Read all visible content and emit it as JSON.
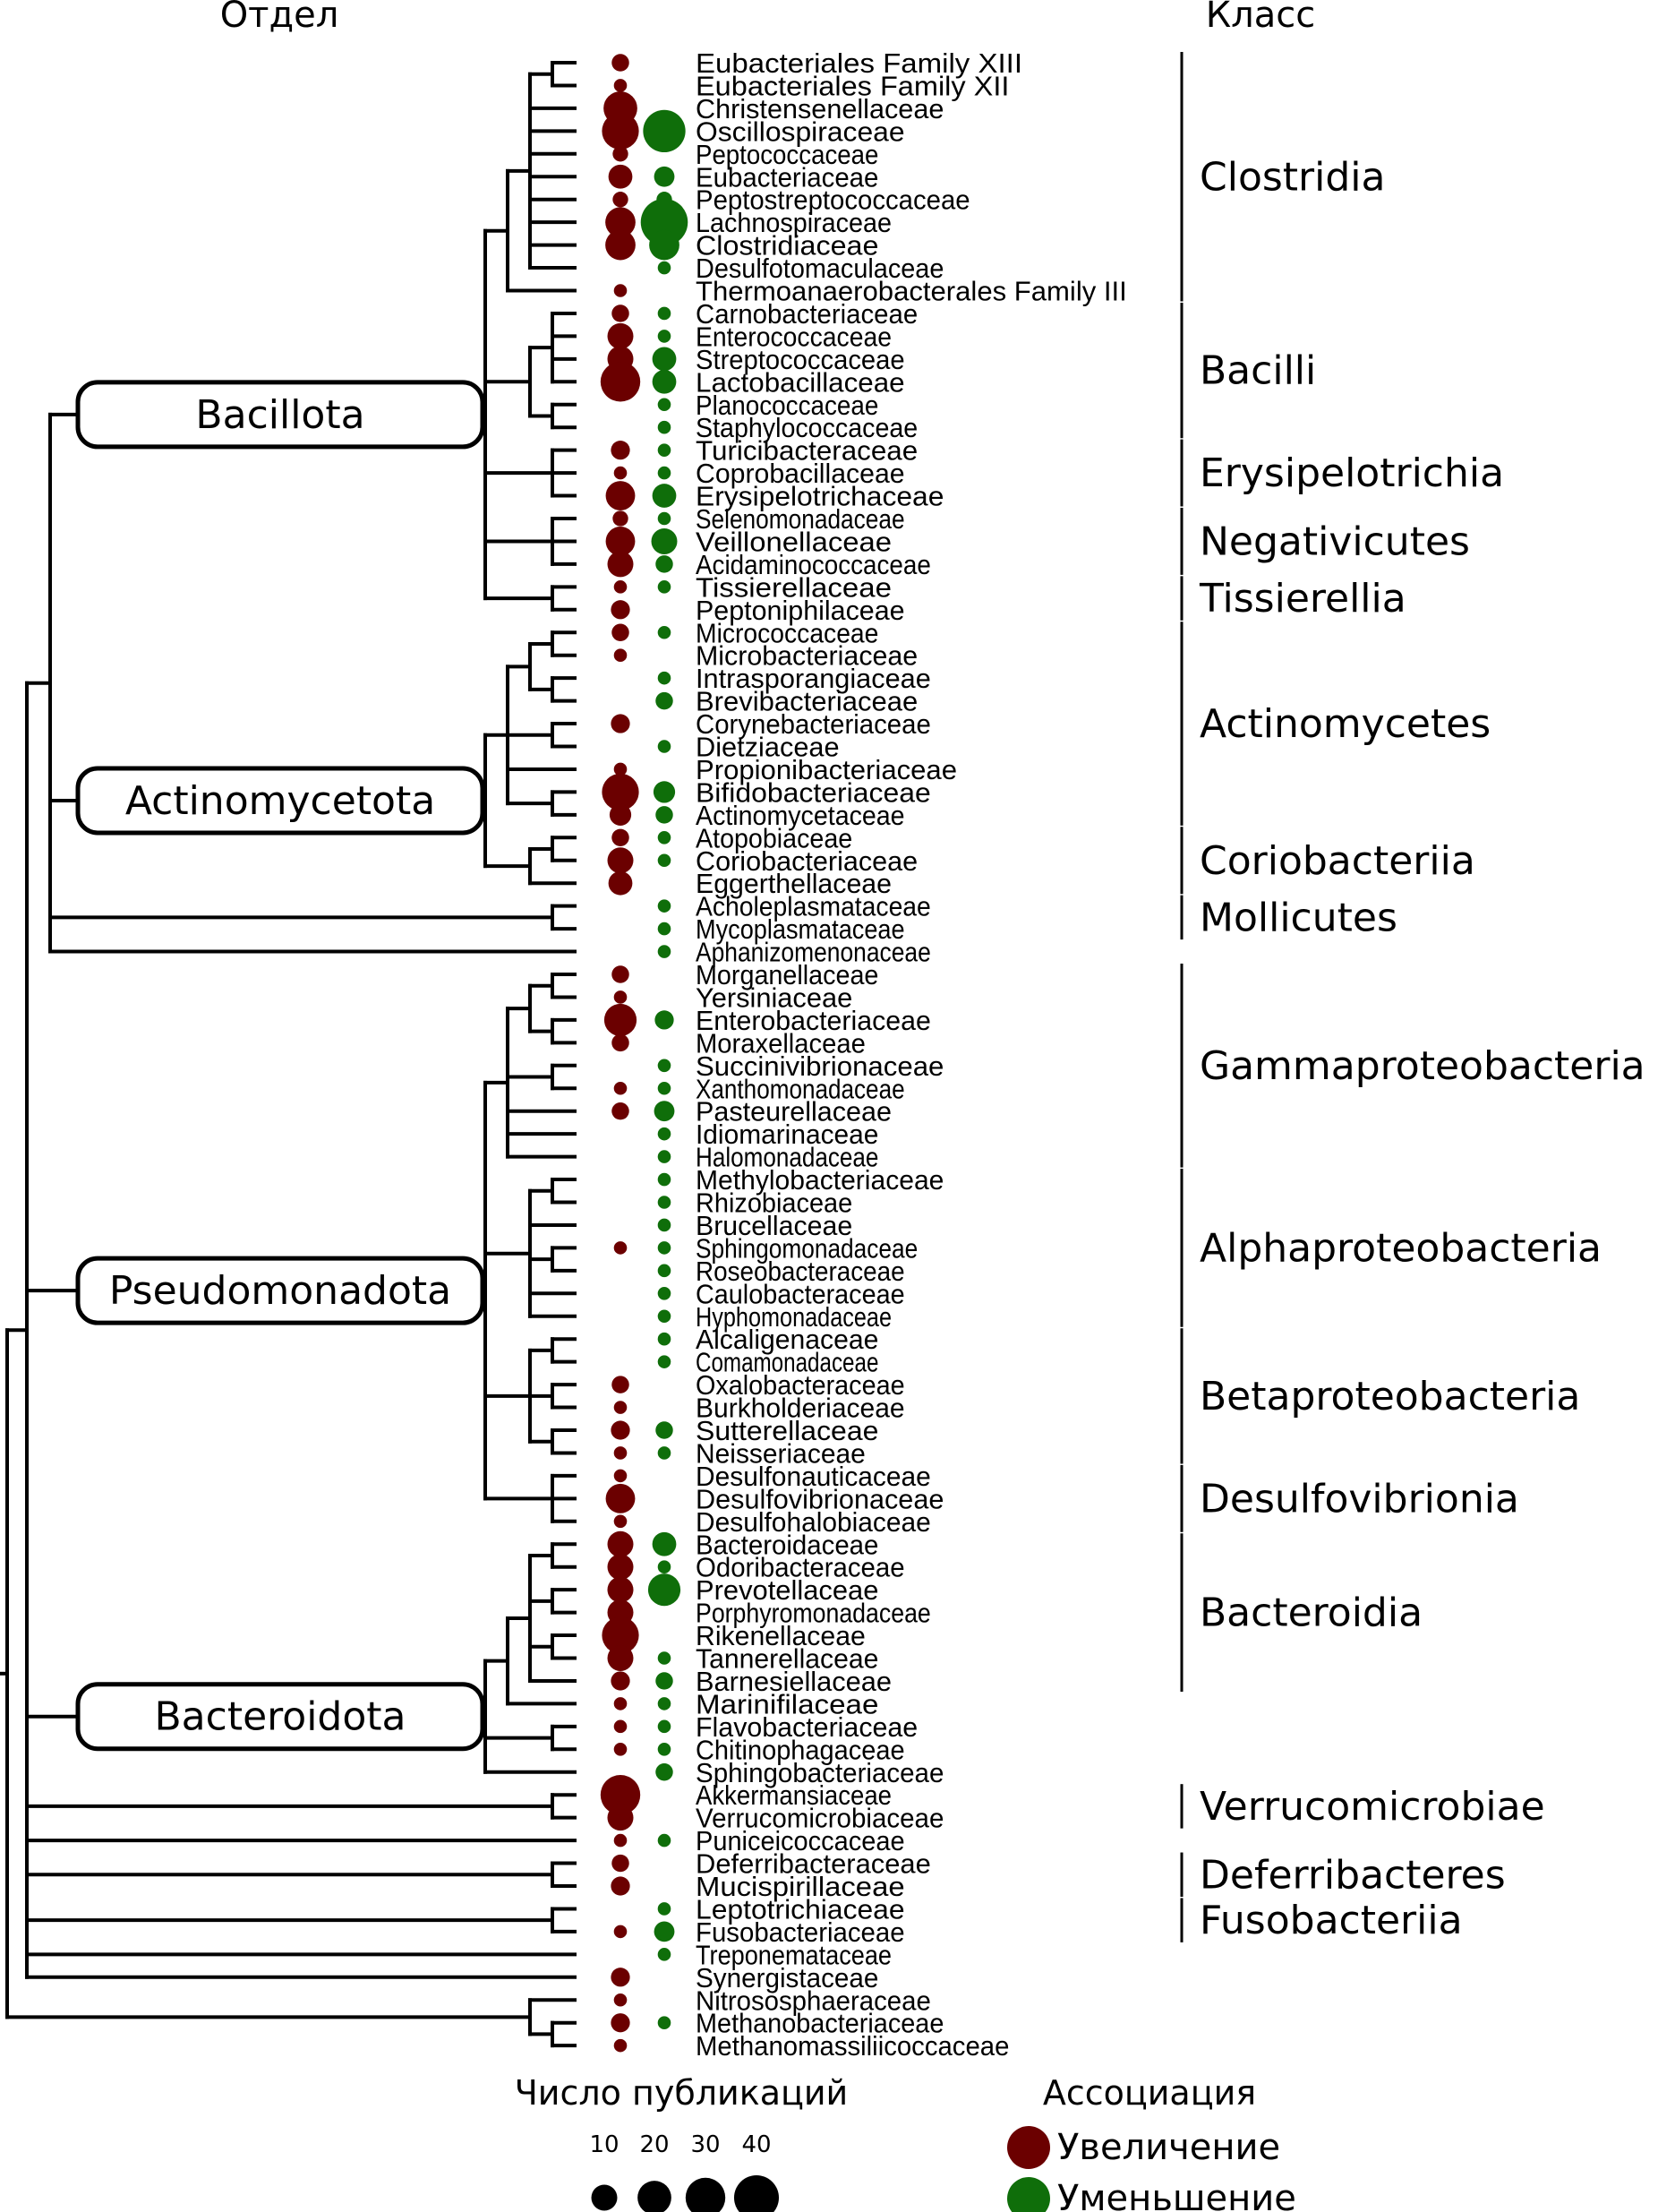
{
  "headers": {
    "phylum": "Отдел",
    "class": "Класс"
  },
  "colors": {
    "increase": "#6b0000",
    "decrease": "#0f6e0a",
    "lines": "#000000"
  },
  "families": [
    {
      "name": "Eubacteriales Family XIII",
      "increase": 3,
      "decrease": 0
    },
    {
      "name": "Eubacteriales Family XII",
      "increase": 1,
      "decrease": 0
    },
    {
      "name": "Christensenellaceae",
      "increase": 20,
      "decrease": 0
    },
    {
      "name": "Oscillospiraceae",
      "increase": 25,
      "decrease": 35
    },
    {
      "name": "Peptococcaceae",
      "increase": 2,
      "decrease": 0
    },
    {
      "name": "Eubacteriaceae",
      "increase": 8,
      "decrease": 5
    },
    {
      "name": "Peptostreptococcaceae",
      "increase": 2,
      "decrease": 2
    },
    {
      "name": "Lachnospiraceae",
      "increase": 15,
      "decrease": 45
    },
    {
      "name": "Clostridiaceae",
      "increase": 15,
      "decrease": 15
    },
    {
      "name": "Desulfotomaculaceae",
      "increase": 0,
      "decrease": 1
    },
    {
      "name": "Thermoanaerobacterales Family III",
      "increase": 1,
      "decrease": 0
    },
    {
      "name": "Carnobacteriaceae",
      "increase": 3,
      "decrease": 1
    },
    {
      "name": "Enterococcaceae",
      "increase": 10,
      "decrease": 1
    },
    {
      "name": "Streptococcaceae",
      "increase": 10,
      "decrease": 8
    },
    {
      "name": "Lactobacillaceae",
      "increase": 30,
      "decrease": 8
    },
    {
      "name": "Planococcaceae",
      "increase": 0,
      "decrease": 1
    },
    {
      "name": "Staphylococcaceae",
      "increase": 0,
      "decrease": 1
    },
    {
      "name": "Turicibacteraceae",
      "increase": 4,
      "decrease": 1
    },
    {
      "name": "Coprobacillaceae",
      "increase": 1,
      "decrease": 1
    },
    {
      "name": "Erysipelotrichaceae",
      "increase": 14,
      "decrease": 8
    },
    {
      "name": "Selenomonadaceae",
      "increase": 2,
      "decrease": 1
    },
    {
      "name": "Veillonellaceae",
      "increase": 14,
      "decrease": 10
    },
    {
      "name": "Acidaminococcaceae",
      "increase": 10,
      "decrease": 3
    },
    {
      "name": "Tissierellaceae",
      "increase": 1,
      "decrease": 1
    },
    {
      "name": "Peptoniphilaceae",
      "increase": 4,
      "decrease": 0
    },
    {
      "name": "Micrococcaceae",
      "increase": 3,
      "decrease": 1
    },
    {
      "name": "Microbacteriaceae",
      "increase": 1,
      "decrease": 0
    },
    {
      "name": "Intrasporangiaceae",
      "increase": 0,
      "decrease": 1
    },
    {
      "name": "Brevibacteriaceae",
      "increase": 0,
      "decrease": 3
    },
    {
      "name": "Corynebacteriaceae",
      "increase": 4,
      "decrease": 0
    },
    {
      "name": "Dietziaceae",
      "increase": 0,
      "decrease": 1
    },
    {
      "name": "Propionibacteriaceae",
      "increase": 1,
      "decrease": 0
    },
    {
      "name": "Bifidobacteriaceae",
      "increase": 25,
      "decrease": 6
    },
    {
      "name": "Actinomycetaceae",
      "increase": 6,
      "decrease": 3
    },
    {
      "name": "Atopobiaceae",
      "increase": 3,
      "decrease": 1
    },
    {
      "name": "Coriobacteriaceae",
      "increase": 10,
      "decrease": 1
    },
    {
      "name": "Eggerthellaceae",
      "increase": 8,
      "decrease": 0
    },
    {
      "name": "Acholeplasmataceae",
      "increase": 0,
      "decrease": 1
    },
    {
      "name": "Mycoplasmataceae",
      "increase": 0,
      "decrease": 1
    },
    {
      "name": "Aphanizomenonaceae",
      "increase": 0,
      "decrease": 1
    },
    {
      "name": "Morganellaceae",
      "increase": 3,
      "decrease": 0
    },
    {
      "name": "Yersiniaceae",
      "increase": 1,
      "decrease": 0
    },
    {
      "name": "Enterobacteriaceae",
      "increase": 18,
      "decrease": 4
    },
    {
      "name": "Moraxellaceae",
      "increase": 3,
      "decrease": 0
    },
    {
      "name": "Succinivibrionaceae",
      "increase": 0,
      "decrease": 1
    },
    {
      "name": "Xanthomonadaceae",
      "increase": 1,
      "decrease": 1
    },
    {
      "name": "Pasteurellaceae",
      "increase": 3,
      "decrease": 5
    },
    {
      "name": "Idiomarinaceae",
      "increase": 0,
      "decrease": 1
    },
    {
      "name": "Halomonadaceae",
      "increase": 0,
      "decrease": 1
    },
    {
      "name": "Methylobacteriaceae",
      "increase": 0,
      "decrease": 1
    },
    {
      "name": "Rhizobiaceae",
      "increase": 0,
      "decrease": 1
    },
    {
      "name": "Brucellaceae",
      "increase": 0,
      "decrease": 1
    },
    {
      "name": "Sphingomonadaceae",
      "increase": 1,
      "decrease": 1
    },
    {
      "name": "Roseobacteraceae",
      "increase": 0,
      "decrease": 1
    },
    {
      "name": "Caulobacteraceae",
      "increase": 0,
      "decrease": 1
    },
    {
      "name": "Hyphomonadaceae",
      "increase": 0,
      "decrease": 1
    },
    {
      "name": "Alcaligenaceae",
      "increase": 0,
      "decrease": 1
    },
    {
      "name": "Comamonadaceae",
      "increase": 0,
      "decrease": 1
    },
    {
      "name": "Oxalobacteraceae",
      "increase": 3,
      "decrease": 0
    },
    {
      "name": "Burkholderiaceae",
      "increase": 1,
      "decrease": 0
    },
    {
      "name": "Sutterellaceae",
      "increase": 4,
      "decrease": 3
    },
    {
      "name": "Neisseriaceae",
      "increase": 1,
      "decrease": 1
    },
    {
      "name": "Desulfonauticaceae",
      "increase": 1,
      "decrease": 0
    },
    {
      "name": "Desulfovibrionaceae",
      "increase": 14,
      "decrease": 0
    },
    {
      "name": "Desulfohalobiaceae",
      "increase": 1,
      "decrease": 0
    },
    {
      "name": "Bacteroidaceae",
      "increase": 10,
      "decrease": 8
    },
    {
      "name": "Odoribacteraceae",
      "increase": 10,
      "decrease": 1
    },
    {
      "name": "Prevotellaceae",
      "increase": 10,
      "decrease": 18
    },
    {
      "name": "Porphyromonadaceae",
      "increase": 10,
      "decrease": 0
    },
    {
      "name": "Rikenellaceae",
      "increase": 25,
      "decrease": 0
    },
    {
      "name": "Tannerellaceae",
      "increase": 10,
      "decrease": 1
    },
    {
      "name": "Barnesiellaceae",
      "increase": 4,
      "decrease": 3
    },
    {
      "name": "Marinifilaceae",
      "increase": 1,
      "decrease": 1
    },
    {
      "name": "Flavobacteriaceae",
      "increase": 1,
      "decrease": 1
    },
    {
      "name": "Chitinophagaceae",
      "increase": 1,
      "decrease": 1
    },
    {
      "name": "Sphingobacteriaceae",
      "increase": 0,
      "decrease": 3
    },
    {
      "name": "Akkermansiaceae",
      "increase": 30,
      "decrease": 0
    },
    {
      "name": "Verrucomicrobiaceae",
      "increase": 10,
      "decrease": 0
    },
    {
      "name": "Puniceicoccaceae",
      "increase": 1,
      "decrease": 1
    },
    {
      "name": "Deferribacteraceae",
      "increase": 3,
      "decrease": 0
    },
    {
      "name": "Mucispirillaceae",
      "increase": 4,
      "decrease": 0
    },
    {
      "name": "Leptotrichiaceae",
      "increase": 0,
      "decrease": 1
    },
    {
      "name": "Fusobacteriaceae",
      "increase": 1,
      "decrease": 5
    },
    {
      "name": "Treponemataceae",
      "increase": 0,
      "decrease": 1
    },
    {
      "name": "Synergistaceae",
      "increase": 4,
      "decrease": 0
    },
    {
      "name": "Nitrososphaeraceae",
      "increase": 1,
      "decrease": 0
    },
    {
      "name": "Methanobacteriaceae",
      "increase": 4,
      "decrease": 1
    },
    {
      "name": "Methanomassiliicoccaceae",
      "increase": 1,
      "decrease": 0
    }
  ],
  "tree": {
    "c": [
      {
        "c": [
          {
            "c": [
              {
                "phylum": "Bacillota",
                "c": [
                  {
                    "c": [
                      {
                        "c": [
                          {
                            "c": [
                              0,
                              1
                            ]
                          },
                          2,
                          3,
                          4,
                          5,
                          6,
                          7,
                          8,
                          9
                        ]
                      },
                      10
                    ]
                  },
                  {
                    "c": [
                      {
                        "c": [
                          11,
                          12,
                          13,
                          14
                        ]
                      },
                      {
                        "c": [
                          15,
                          16
                        ]
                      }
                    ]
                  },
                  {
                    "c": [
                      17,
                      18,
                      19
                    ]
                  },
                  {
                    "c": [
                      20,
                      21,
                      22
                    ]
                  },
                  {
                    "c": [
                      23,
                      24
                    ]
                  }
                ]
              },
              {
                "phylum": "Actinomycetota",
                "c": [
                  {
                    "c": [
                      {
                        "c": [
                          {
                            "c": [
                              25,
                              26
                            ]
                          },
                          {
                            "c": [
                              27,
                              28
                            ]
                          }
                        ]
                      },
                      {
                        "c": [
                          29,
                          30
                        ]
                      },
                      31,
                      {
                        "c": [
                          32,
                          33
                        ]
                      }
                    ]
                  },
                  {
                    "c": [
                      {
                        "c": [
                          34,
                          35
                        ]
                      },
                      36
                    ]
                  }
                ]
              },
              {
                "c": [
                  37,
                  38
                ]
              },
              39
            ]
          },
          {
            "phylum": "Pseudomonadota",
            "c": [
              {
                "c": [
                  {
                    "c": [
                      {
                        "c": [
                          40,
                          41
                        ]
                      },
                      {
                        "c": [
                          42,
                          43
                        ]
                      }
                    ]
                  },
                  {
                    "c": [
                      44,
                      45
                    ]
                  },
                  46,
                  47,
                  48
                ]
              },
              {
                "c": [
                  {
                    "c": [
                      49,
                      50
                    ]
                  },
                  51,
                  {
                    "c": [
                      52,
                      53
                    ]
                  },
                  54,
                  55
                ]
              },
              {
                "c": [
                  {
                    "c": [
                      56,
                      57
                    ]
                  },
                  {
                    "c": [
                      58,
                      59
                    ]
                  },
                  {
                    "c": [
                      60,
                      61
                    ]
                  }
                ]
              },
              {
                "c": [
                  62,
                  63,
                  64
                ]
              }
            ]
          },
          {
            "phylum": "Bacteroidota",
            "c": [
              {
                "c": [
                  {
                    "c": [
                      {
                        "c": [
                          65,
                          66
                        ]
                      },
                      {
                        "c": [
                          67,
                          68
                        ]
                      },
                      {
                        "c": [
                          69,
                          70
                        ]
                      },
                      71
                    ]
                  },
                  72
                ]
              },
              {
                "c": [
                  73,
                  74
                ]
              },
              75
            ]
          },
          {
            "c": [
              76,
              77
            ]
          },
          78,
          {
            "c": [
              79,
              80
            ]
          },
          {
            "c": [
              81,
              82
            ]
          },
          83,
          84
        ]
      },
      {
        "c": [
          85,
          {
            "c": [
              86,
              87
            ]
          }
        ]
      }
    ]
  },
  "classes": [
    {
      "name": "Clostridia",
      "from": 0,
      "to": 10
    },
    {
      "name": "Bacilli",
      "from": 11,
      "to": 16
    },
    {
      "name": "Erysipelotrichia",
      "from": 17,
      "to": 19
    },
    {
      "name": "Negativicutes",
      "from": 20,
      "to": 22
    },
    {
      "name": "Tissierellia",
      "from": 23,
      "to": 24
    },
    {
      "name": "Actinomycetes",
      "from": 25,
      "to": 33
    },
    {
      "name": "Coriobacteriia",
      "from": 34,
      "to": 36
    },
    {
      "name": "Mollicutes",
      "from": 37,
      "to": 38
    },
    {
      "name": "Gammaproteobacteria",
      "from": 40,
      "to": 48
    },
    {
      "name": "Alphaproteobacteria",
      "from": 49,
      "to": 55
    },
    {
      "name": "Betaproteobacteria",
      "from": 56,
      "to": 61
    },
    {
      "name": "Desulfovibrionia",
      "from": 62,
      "to": 64
    },
    {
      "name": "Bacteroidia",
      "from": 65,
      "to": 71
    },
    {
      "name": "Verrucomicrobiae",
      "from": 76,
      "to": 77
    },
    {
      "name": "Deferribacteres",
      "from": 79,
      "to": 80
    },
    {
      "name": "Fusobacteriia",
      "from": 81,
      "to": 82
    }
  ],
  "legend": {
    "size_title": "Число публикаций",
    "size_values": [
      10,
      20,
      30,
      40
    ],
    "size_labels": [
      "10",
      "20",
      "30",
      "40"
    ],
    "assoc_title": "Ассоциация",
    "increase_label": "Увеличение",
    "decrease_label": "Уменьшение"
  }
}
